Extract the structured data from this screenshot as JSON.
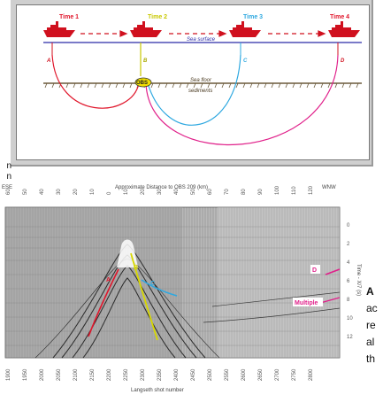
{
  "schematic": {
    "time_labels": [
      "Time 1",
      "Time 2",
      "Time 3",
      "Time 4"
    ],
    "time_colors": [
      "#e0162b",
      "#c8c800",
      "#2ea8e0",
      "#e0162b"
    ],
    "point_labels": [
      "A",
      "B",
      "C",
      "D"
    ],
    "sea_surface_label": "Sea surface",
    "sea_floor_label": "Sea floor",
    "sediments_label": "sediments",
    "obs_label": "OBS"
  },
  "section": {
    "left_direction": "ESE",
    "right_direction": "WNW",
    "top_axis_title": "Approximate Distance to OBS 209 (km)",
    "top_ticks": [
      "60",
      "50",
      "40",
      "30",
      "20",
      "10",
      "0",
      "10",
      "20",
      "30",
      "40",
      "50",
      "60",
      "70",
      "80",
      "90",
      "100",
      "110",
      "120"
    ],
    "right_axis_title": "Time - X/7 (s)",
    "right_ticks": [
      "0",
      "2",
      "4",
      "6",
      "8",
      "10",
      "12"
    ],
    "bottom_axis_title": "Langseth shot number",
    "bottom_ticks": [
      "1900",
      "1950",
      "2000",
      "2050",
      "2100",
      "2150",
      "2200",
      "2250",
      "2300",
      "2350",
      "2400",
      "2450",
      "2500",
      "2550",
      "2600",
      "2650",
      "2700",
      "2750",
      "2800"
    ],
    "labels": {
      "a": "A",
      "b": "B",
      "c": "C",
      "d": "D",
      "multiple": "Multiple"
    }
  },
  "side_text": [
    "n",
    "n"
  ],
  "caption_lines": [
    "A",
    "ac",
    "re",
    "al",
    "th"
  ]
}
